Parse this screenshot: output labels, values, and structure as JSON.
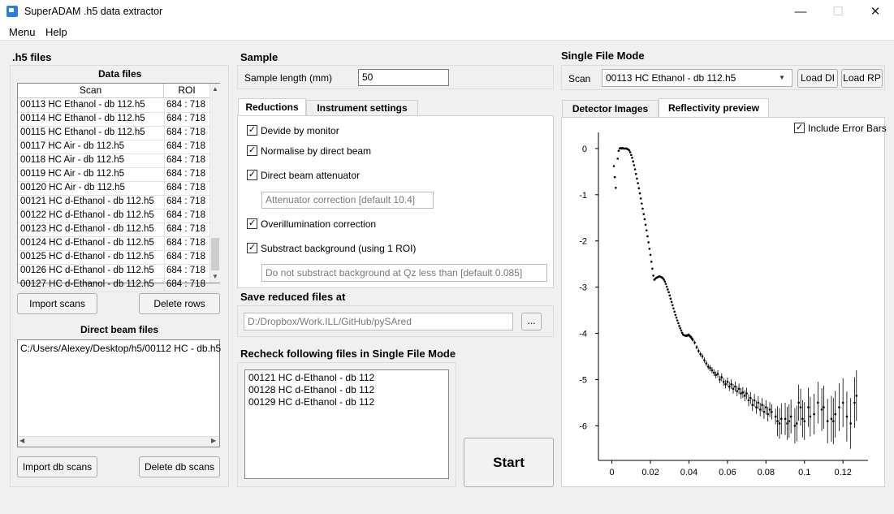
{
  "window": {
    "title": "SuperADAM .h5 data extractor",
    "minimize": "—",
    "maximize": "☐",
    "close": "✕"
  },
  "menu": [
    "Menu",
    "Help"
  ],
  "h5": {
    "title": ".h5 files",
    "data_files_title": "Data files",
    "col_scan": "Scan",
    "col_roi": "ROI",
    "rows": [
      {
        "scan": "00113 HC Ethanol - db 112.h5",
        "roi": "684 : 718"
      },
      {
        "scan": "00114 HC Ethanol - db 112.h5",
        "roi": "684 : 718"
      },
      {
        "scan": "00115 HC Ethanol - db 112.h5",
        "roi": "684 : 718"
      },
      {
        "scan": "00117 HC Air - db 112.h5",
        "roi": "684 : 718"
      },
      {
        "scan": "00118 HC Air - db 112.h5",
        "roi": "684 : 718"
      },
      {
        "scan": "00119 HC Air - db 112.h5",
        "roi": "684 : 718"
      },
      {
        "scan": "00120 HC Air - db 112.h5",
        "roi": "684 : 718"
      },
      {
        "scan": "00121 HC d-Ethanol - db 112.h5",
        "roi": "684 : 718"
      },
      {
        "scan": "00122 HC d-Ethanol - db 112.h5",
        "roi": "684 : 718"
      },
      {
        "scan": "00123 HC d-Ethanol - db 112.h5",
        "roi": "684 : 718"
      },
      {
        "scan": "00124 HC d-Ethanol - db 112.h5",
        "roi": "684 : 718"
      },
      {
        "scan": "00125 HC d-Ethanol - db 112.h5",
        "roi": "684 : 718"
      },
      {
        "scan": "00126 HC d-Ethanol - db 112.h5",
        "roi": "684 : 718"
      },
      {
        "scan": "00127 HC d-Ethanol - db 112.h5",
        "roi": "684 : 718"
      }
    ],
    "import_scans": "Import scans",
    "delete_rows": "Delete rows",
    "db_title": "Direct beam files",
    "db_entry": "C:/Users/Alexey/Desktop/h5/00112 HC - db.h5",
    "import_db": "Import db scans",
    "delete_db": "Delete db scans"
  },
  "sample": {
    "title": "Sample",
    "length_label": "Sample length (mm)",
    "length_value": "50"
  },
  "tabs": {
    "reductions": "Reductions",
    "instrument": "Instrument settings"
  },
  "reductions": {
    "monitor": "Devide by monitor",
    "normalise": "Normalise by direct beam",
    "attenuator": "Direct beam attenuator",
    "attenuator_placeholder": "Attenuator correction [default 10.4]",
    "overillum": "Overillumination correction",
    "background": "Substract background (using 1 ROI)",
    "background_placeholder": "Do not substract background at Qz less than [default 0.085]"
  },
  "save": {
    "title": "Save reduced files at",
    "path": "D:/Dropbox/Work.ILL/GitHub/pySAred",
    "browse": "..."
  },
  "recheck": {
    "title": "Recheck following files in Single File Mode",
    "items": [
      "00121 HC d-Ethanol - db 112",
      "00128 HC d-Ethanol - db 112",
      "00129 HC d-Ethanol - db 112"
    ]
  },
  "start": "Start",
  "single": {
    "title": "Single File Mode",
    "scan_label": "Scan",
    "scan_value": "00113 HC Ethanol - db 112.h5",
    "load_di": "Load DI",
    "load_rp": "Load RP",
    "tab_detector": "Detector Images",
    "tab_reflectivity": "Reflectivity preview",
    "error_bars": "Include Error Bars"
  },
  "chart_data": {
    "type": "scatter",
    "xlim": [
      -0.007,
      0.133
    ],
    "ylim": [
      -6.75,
      0.35
    ],
    "x_ticks": [
      0,
      0.02,
      0.04,
      0.06,
      0.08,
      0.1,
      0.12
    ],
    "x_tick_labels": [
      "0",
      "0.02",
      "0.04",
      "0.06",
      "0.08",
      "0.1",
      "0.12"
    ],
    "y_ticks": [
      0,
      -1,
      -2,
      -3,
      -4,
      -5,
      -6
    ],
    "y_tick_labels": [
      "0",
      "-1",
      "-2",
      "-3",
      "-4",
      "-5",
      "-6"
    ],
    "grid": false,
    "error_bars": true,
    "series": [
      {
        "points": [
          [
            0.001,
            -0.38
          ],
          [
            0.0015,
            -0.62
          ],
          [
            0.002,
            -0.85
          ],
          [
            0.003,
            -0.22
          ],
          [
            0.0035,
            -0.05
          ],
          [
            0.004,
            0.0
          ],
          [
            0.0045,
            0.01
          ],
          [
            0.005,
            0.0
          ],
          [
            0.0055,
            0.01
          ],
          [
            0.006,
            0.0
          ],
          [
            0.0065,
            0.0
          ],
          [
            0.007,
            0.0
          ],
          [
            0.0075,
            0.0
          ],
          [
            0.008,
            -0.01
          ],
          [
            0.0085,
            -0.02
          ],
          [
            0.009,
            -0.04
          ],
          [
            0.0095,
            -0.08
          ],
          [
            0.01,
            -0.14
          ],
          [
            0.0105,
            -0.2
          ],
          [
            0.011,
            -0.28
          ],
          [
            0.0115,
            -0.36
          ],
          [
            0.012,
            -0.45
          ],
          [
            0.0125,
            -0.55
          ],
          [
            0.013,
            -0.65
          ],
          [
            0.0135,
            -0.75
          ],
          [
            0.014,
            -0.86
          ],
          [
            0.0145,
            -0.97
          ],
          [
            0.015,
            -1.08
          ],
          [
            0.0155,
            -1.19
          ],
          [
            0.016,
            -1.3
          ],
          [
            0.0165,
            -1.42
          ],
          [
            0.017,
            -1.53
          ],
          [
            0.0175,
            -1.65
          ],
          [
            0.018,
            -1.77
          ],
          [
            0.0185,
            -1.9
          ],
          [
            0.019,
            -2.03
          ],
          [
            0.0195,
            -2.17
          ],
          [
            0.02,
            -2.3
          ],
          [
            0.0205,
            -2.45
          ],
          [
            0.021,
            -2.6
          ],
          [
            0.0215,
            -2.75
          ],
          [
            0.022,
            -2.84
          ],
          [
            0.0225,
            -2.82
          ],
          [
            0.023,
            -2.8
          ],
          [
            0.0235,
            -2.79
          ],
          [
            0.024,
            -2.78
          ],
          [
            0.0245,
            -2.77
          ],
          [
            0.025,
            -2.77
          ],
          [
            0.0255,
            -2.78
          ],
          [
            0.026,
            -2.79
          ],
          [
            0.0265,
            -2.81
          ],
          [
            0.027,
            -2.84
          ],
          [
            0.0275,
            -2.88
          ],
          [
            0.028,
            -2.93
          ],
          [
            0.0285,
            -2.99
          ],
          [
            0.029,
            -3.05
          ],
          [
            0.0295,
            -3.11
          ],
          [
            0.03,
            -3.18
          ],
          [
            0.0305,
            -3.25
          ],
          [
            0.031,
            -3.32
          ],
          [
            0.0315,
            -3.39
          ],
          [
            0.032,
            -3.46
          ],
          [
            0.0325,
            -3.53
          ],
          [
            0.033,
            -3.6
          ],
          [
            0.0335,
            -3.66
          ],
          [
            0.034,
            -3.72
          ],
          [
            0.0345,
            -3.78
          ],
          [
            0.035,
            -3.84
          ],
          [
            0.0355,
            -3.89
          ],
          [
            0.036,
            -3.94
          ],
          [
            0.0365,
            -3.99
          ],
          [
            0.037,
            -4.03
          ],
          [
            0.0375,
            -4.04
          ],
          [
            0.038,
            -4.05
          ],
          [
            0.0385,
            -4.05
          ],
          [
            0.039,
            -4.05
          ],
          [
            0.0395,
            -4.04
          ],
          [
            0.04,
            -4.04
          ],
          [
            0.0405,
            -4.06
          ],
          [
            0.041,
            -4.08
          ],
          [
            0.0415,
            -4.11
          ],
          [
            0.042,
            -4.14
          ],
          [
            0.043,
            -4.2
          ],
          [
            0.044,
            -4.3
          ],
          [
            0.045,
            -4.38
          ],
          [
            0.046,
            -4.45
          ],
          [
            0.047,
            -4.5
          ],
          [
            0.048,
            -4.58
          ],
          [
            0.049,
            -4.65
          ],
          [
            0.05,
            -4.72
          ],
          [
            0.051,
            -4.75
          ],
          [
            0.052,
            -4.8
          ],
          [
            0.053,
            -4.85
          ],
          [
            0.054,
            -4.9
          ],
          [
            0.055,
            -4.88
          ],
          [
            0.056,
            -5.0
          ],
          [
            0.057,
            -4.95
          ],
          [
            0.058,
            -5.05
          ],
          [
            0.059,
            -5.1
          ],
          [
            0.06,
            -5.05
          ],
          [
            0.061,
            -5.15
          ],
          [
            0.062,
            -5.1
          ],
          [
            0.063,
            -5.2
          ],
          [
            0.064,
            -5.15
          ],
          [
            0.065,
            -5.25
          ],
          [
            0.066,
            -5.2
          ],
          [
            0.067,
            -5.3
          ],
          [
            0.068,
            -5.28
          ],
          [
            0.069,
            -5.35
          ],
          [
            0.07,
            -5.3
          ],
          [
            0.071,
            -5.45
          ],
          [
            0.072,
            -5.4
          ],
          [
            0.073,
            -5.55
          ],
          [
            0.074,
            -5.45
          ],
          [
            0.075,
            -5.6
          ],
          [
            0.076,
            -5.5
          ],
          [
            0.077,
            -5.65
          ],
          [
            0.078,
            -5.55
          ],
          [
            0.079,
            -5.7
          ],
          [
            0.08,
            -5.6
          ],
          [
            0.081,
            -5.75
          ],
          [
            0.082,
            -5.65
          ],
          [
            0.083,
            -5.7
          ],
          [
            0.085,
            -5.8
          ],
          [
            0.086,
            -5.9
          ],
          [
            0.087,
            -5.95
          ],
          [
            0.088,
            -5.85
          ],
          [
            0.09,
            -5.85
          ],
          [
            0.091,
            -5.95
          ],
          [
            0.092,
            -5.9
          ],
          [
            0.093,
            -5.8
          ],
          [
            0.095,
            -6.0
          ],
          [
            0.096,
            -5.95
          ],
          [
            0.097,
            -5.5
          ],
          [
            0.098,
            -5.6
          ],
          [
            0.099,
            -5.85
          ],
          [
            0.1,
            -5.9
          ],
          [
            0.102,
            -5.6
          ],
          [
            0.103,
            -5.8
          ],
          [
            0.105,
            -5.75
          ],
          [
            0.107,
            -5.5
          ],
          [
            0.109,
            -5.65
          ],
          [
            0.11,
            -5.6
          ],
          [
            0.112,
            -5.9
          ],
          [
            0.114,
            -5.85
          ],
          [
            0.115,
            -5.9
          ],
          [
            0.116,
            -5.75
          ],
          [
            0.118,
            -5.6
          ],
          [
            0.12,
            -5.5
          ],
          [
            0.122,
            -5.8
          ],
          [
            0.124,
            -5.95
          ],
          [
            0.126,
            -5.5
          ],
          [
            0.127,
            -5.35
          ]
        ]
      }
    ]
  }
}
